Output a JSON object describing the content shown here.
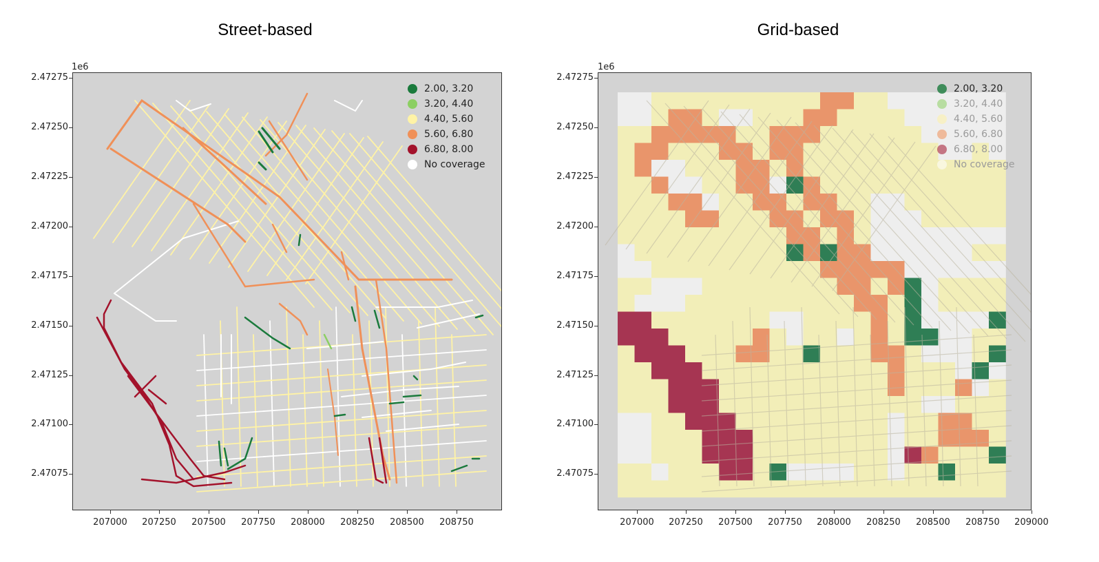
{
  "figure": {
    "left_title": "Street-based",
    "right_title": "Grid-based"
  },
  "colors": {
    "background": "#d3d3d3",
    "c1": "#1a7a3c",
    "c2": "#8ccf62",
    "c3": "#fff3a6",
    "c4": "#f09058",
    "c5": "#a3122b",
    "nocov": "#ffffff"
  },
  "axes": {
    "offset_label": "1e6",
    "y_ticks": [
      "2.47275",
      "2.47250",
      "2.47225",
      "2.47200",
      "2.47175",
      "2.47150",
      "2.47125",
      "2.47100",
      "2.47075"
    ],
    "x_ticks_left": [
      "207000",
      "207250",
      "207500",
      "207750",
      "208000",
      "208250",
      "208500",
      "208750"
    ],
    "x_ticks_right": [
      "207000",
      "207250",
      "207500",
      "207750",
      "208000",
      "208250",
      "208500",
      "208750",
      "209000"
    ]
  },
  "legend": [
    {
      "label": "2.00, 3.20",
      "color": "#1a7a3c"
    },
    {
      "label": "3.20, 4.40",
      "color": "#8ccf62"
    },
    {
      "label": "4.40, 5.60",
      "color": "#fff3a6"
    },
    {
      "label": "5.60, 6.80",
      "color": "#f09058"
    },
    {
      "label": "6.80, 8.00",
      "color": "#a3122b"
    },
    {
      "label": "No coverage",
      "color": "#ffffff"
    }
  ]
}
